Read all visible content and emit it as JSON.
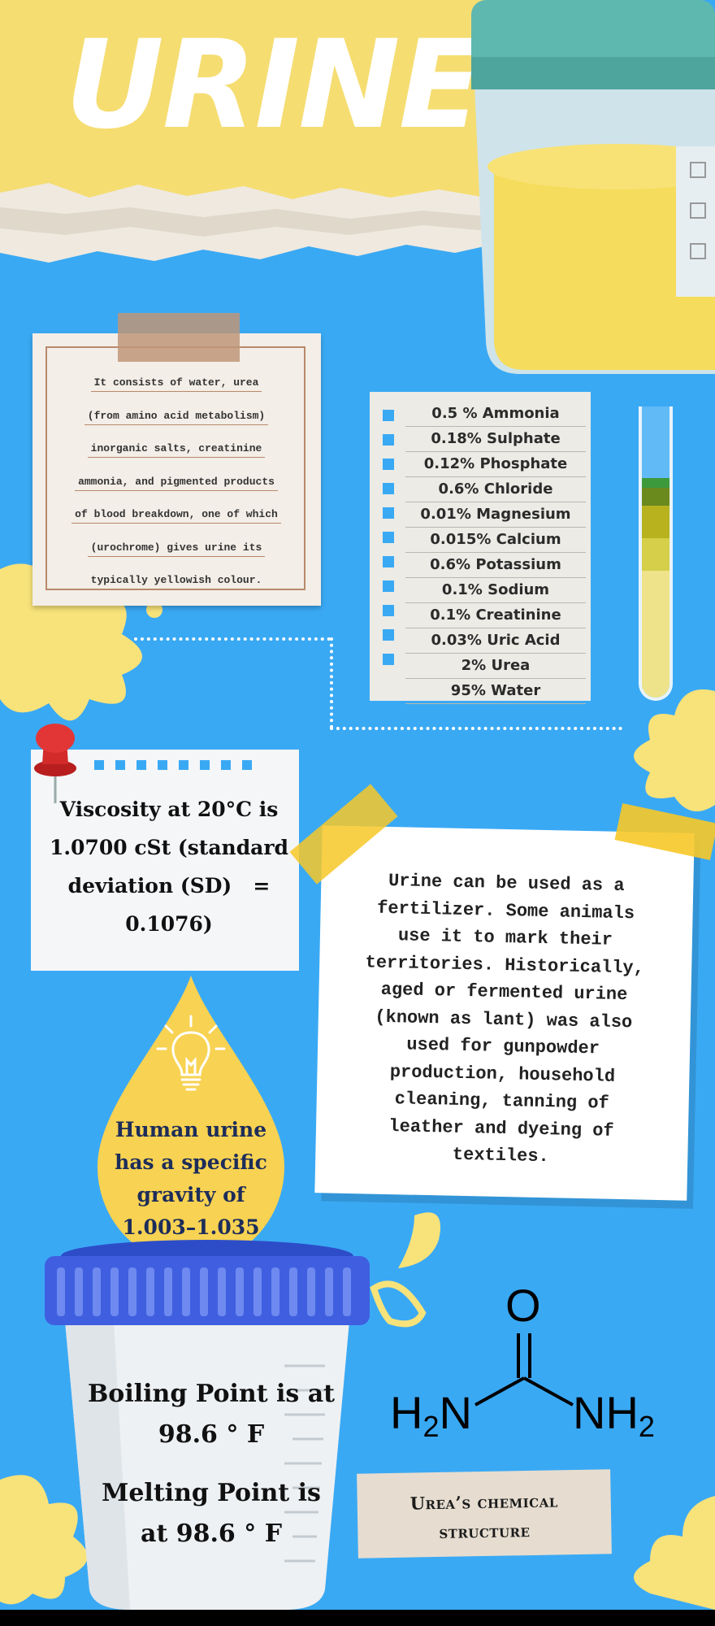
{
  "header": {
    "title": "URINE"
  },
  "composition_intro": {
    "lines": [
      "It consists of water, urea",
      "(from amino acid metabolism)",
      "inorganic salts, creatinine",
      "ammonia, and pigmented products",
      "of blood breakdown, one of which",
      "(urochrome) gives urine its",
      "typically yellowish colour."
    ]
  },
  "composition_list": {
    "items": [
      "0.5 % Ammonia",
      "0.18% Sulphate",
      "0.12% Phosphate",
      "0.6% Chloride",
      "0.01% Magnesium",
      "0.015% Calcium",
      "0.6% Potassium",
      "0.1% Sodium",
      "0.1% Creatinine",
      "0.03% Uric Acid",
      "2% Urea",
      "95% Water"
    ]
  },
  "viscosity": {
    "lines": [
      "Viscosity at 20°C is",
      "1.0700 cSt (standard",
      "deviation (SD)   =",
      "0.1076)"
    ]
  },
  "uses": {
    "lines": [
      "Urine can be used as a",
      "fertilizer. Some animals",
      "use it to mark their",
      "territories. Historically,",
      "aged or fermented urine",
      "(known as lant) was also",
      "used for gunpowder",
      "production, household",
      "cleaning, tanning of",
      "leather and dyeing of",
      "textiles."
    ]
  },
  "specific_gravity": {
    "lines": [
      "Human urine",
      "has a specific",
      "gravity of",
      "1.003–1.035"
    ]
  },
  "points": {
    "boiling": [
      "Boiling Point is at",
      "98.6 ° F"
    ],
    "melting": [
      "Melting Point is",
      "at 98.6 ° F"
    ]
  },
  "urea": {
    "caption_lines": [
      "Urea’s chemical",
      "structure"
    ],
    "atoms": {
      "top": "O",
      "left_main": "H",
      "left_sub": "2",
      "left_tail": "N",
      "right_head": "NH",
      "right_sub": "2"
    }
  },
  "colors": {
    "background": "#3aa9f4",
    "yellow": "#f5dd72",
    "accent_yellow": "#f7c828",
    "cup_lid": "#3f5fe0"
  },
  "icons": [
    "lightbulb-icon",
    "push-pin-icon",
    "splash-icon"
  ]
}
